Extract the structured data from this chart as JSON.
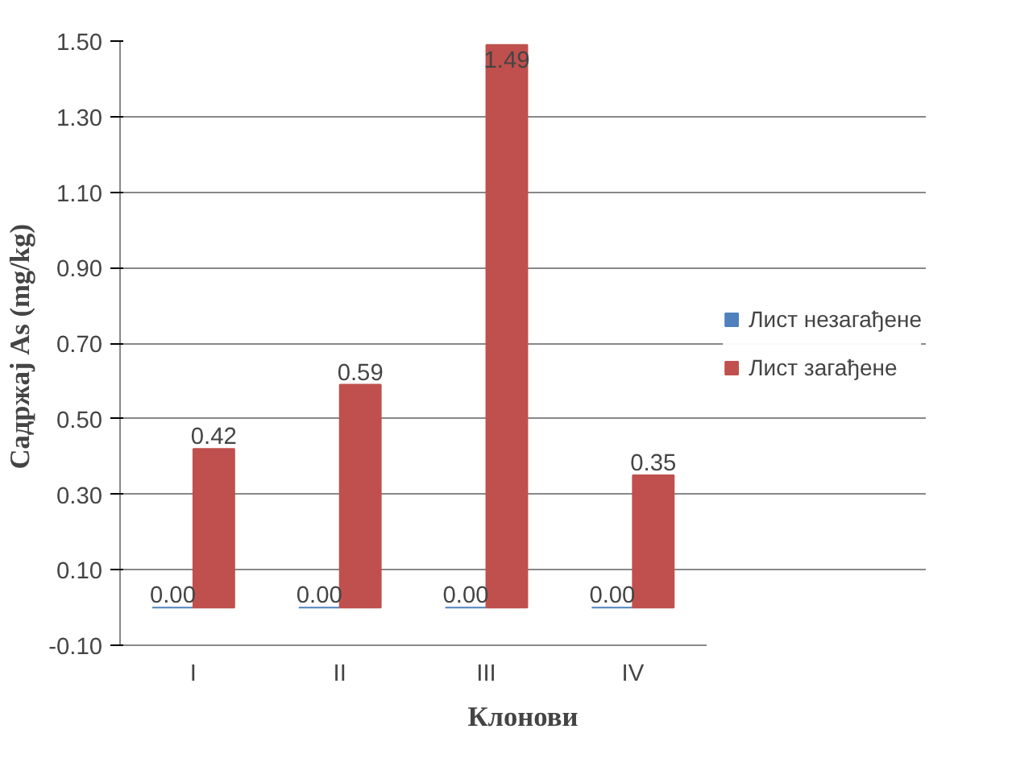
{
  "chart_data": {
    "type": "bar",
    "categories": [
      "I",
      "II",
      "III",
      "IV"
    ],
    "xlabel": "Клонови",
    "ylabel": "Садржај As  (mg/kg)",
    "series": [
      {
        "name": "Лист незагађене",
        "color": "#4f81bd",
        "values": [
          0.0,
          0.0,
          0.0,
          0.0
        ],
        "value_labels": [
          "0.00",
          "0.00",
          "0.00",
          "0.00"
        ]
      },
      {
        "name": "Лист загађене",
        "color": "#c0504d",
        "values": [
          0.42,
          0.59,
          1.49,
          0.35
        ],
        "value_labels": [
          "0.42",
          "0.59",
          "1.49",
          "0.35"
        ]
      }
    ],
    "ylim": [
      -0.1,
      1.5
    ],
    "yticks": [
      {
        "value": -0.1,
        "label": "-0.10"
      },
      {
        "value": 0.1,
        "label": "0.10"
      },
      {
        "value": 0.3,
        "label": "0.30"
      },
      {
        "value": 0.5,
        "label": "0.50"
      },
      {
        "value": 0.7,
        "label": "0.70"
      },
      {
        "value": 0.9,
        "label": "0.90"
      },
      {
        "value": 1.1,
        "label": "1.10"
      },
      {
        "value": 1.3,
        "label": "1.30"
      },
      {
        "value": 1.5,
        "label": "1.50"
      }
    ],
    "grid": "y",
    "legend": "right"
  }
}
